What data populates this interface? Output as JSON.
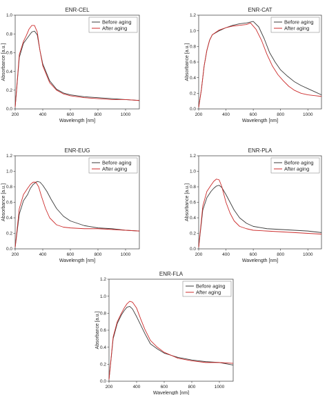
{
  "series_colors": {
    "before": "#3a3a3a",
    "after": "#cc2a2a"
  },
  "chart_data": [
    {
      "type": "line",
      "title": "ENR-CEL",
      "xlabel": "Wavelength [nm]",
      "ylabel": "Absorbance [a.u.]",
      "xlim": [
        200,
        1100
      ],
      "ylim": [
        0,
        1.0
      ],
      "xticks": [
        200,
        400,
        600,
        800,
        1000
      ],
      "yticks": [
        0,
        0.2,
        0.4,
        0.6,
        0.8,
        1.0
      ],
      "ytick_labels": [
        "0.0",
        "0.2",
        "0.4",
        "0.6",
        "0.8",
        "1.0"
      ],
      "legend": "top-right",
      "series": [
        {
          "name": "Before aging",
          "color": "#3a3a3a",
          "x": [
            200,
            230,
            260,
            280,
            300,
            320,
            340,
            360,
            380,
            400,
            450,
            500,
            550,
            600,
            700,
            800,
            900,
            1000,
            1100
          ],
          "y": [
            0.02,
            0.55,
            0.7,
            0.74,
            0.78,
            0.82,
            0.83,
            0.79,
            0.62,
            0.48,
            0.3,
            0.21,
            0.17,
            0.15,
            0.13,
            0.12,
            0.11,
            0.1,
            0.09
          ]
        },
        {
          "name": "After aging",
          "color": "#cc2a2a",
          "x": [
            200,
            230,
            260,
            280,
            300,
            320,
            340,
            360,
            380,
            400,
            450,
            500,
            550,
            600,
            700,
            800,
            900,
            1000,
            1100
          ],
          "y": [
            0.02,
            0.58,
            0.72,
            0.78,
            0.85,
            0.89,
            0.89,
            0.82,
            0.62,
            0.46,
            0.28,
            0.2,
            0.16,
            0.14,
            0.12,
            0.11,
            0.1,
            0.1,
            0.09
          ]
        }
      ]
    },
    {
      "type": "line",
      "title": "ENR-CAT",
      "xlabel": "Wavelength [nm]",
      "ylabel": "Absorbance [a.u.]",
      "xlim": [
        200,
        1100
      ],
      "ylim": [
        0,
        1.2
      ],
      "xticks": [
        200,
        400,
        600,
        800,
        1000
      ],
      "yticks": [
        0,
        0.2,
        0.4,
        0.6,
        0.8,
        1.0,
        1.2
      ],
      "ytick_labels": [
        "0.0",
        "0.2",
        "0.4",
        "0.6",
        "0.8",
        "1.0",
        "1.2"
      ],
      "legend": "top-right",
      "series": [
        {
          "name": "Before aging",
          "color": "#3a3a3a",
          "x": [
            200,
            220,
            240,
            260,
            280,
            300,
            350,
            400,
            450,
            500,
            550,
            600,
            640,
            680,
            720,
            760,
            800,
            850,
            900,
            950,
            1000,
            1050,
            1100
          ],
          "y": [
            0.02,
            0.25,
            0.55,
            0.75,
            0.88,
            0.95,
            1.0,
            1.04,
            1.07,
            1.09,
            1.1,
            1.12,
            1.05,
            0.9,
            0.72,
            0.6,
            0.5,
            0.42,
            0.35,
            0.3,
            0.26,
            0.22,
            0.18
          ]
        },
        {
          "name": "After aging",
          "color": "#cc2a2a",
          "x": [
            200,
            220,
            240,
            260,
            280,
            300,
            350,
            400,
            450,
            500,
            550,
            580,
            620,
            660,
            700,
            740,
            780,
            820,
            860,
            900,
            950,
            1000,
            1050,
            1100
          ],
          "y": [
            0.02,
            0.25,
            0.55,
            0.75,
            0.88,
            0.95,
            1.01,
            1.04,
            1.06,
            1.07,
            1.08,
            1.1,
            1.02,
            0.88,
            0.7,
            0.55,
            0.44,
            0.36,
            0.29,
            0.24,
            0.2,
            0.18,
            0.17,
            0.16
          ]
        }
      ]
    },
    {
      "type": "line",
      "title": "ENR-EUG",
      "xlabel": "Wavelength [nm]",
      "ylabel": "Absorbance [a.u.]",
      "xlim": [
        200,
        1100
      ],
      "ylim": [
        0,
        1.2
      ],
      "xticks": [
        200,
        400,
        600,
        800,
        1000
      ],
      "yticks": [
        0,
        0.2,
        0.4,
        0.6,
        0.8,
        1.0,
        1.2
      ],
      "ytick_labels": [
        "0.0",
        "0.2",
        "0.4",
        "0.6",
        "0.8",
        "1.0",
        "1.2"
      ],
      "legend": "top-right",
      "series": [
        {
          "name": "Before aging",
          "color": "#3a3a3a",
          "x": [
            200,
            230,
            260,
            290,
            310,
            330,
            360,
            380,
            400,
            430,
            460,
            500,
            550,
            600,
            700,
            800,
            900,
            1000,
            1100
          ],
          "y": [
            0.02,
            0.45,
            0.62,
            0.7,
            0.78,
            0.83,
            0.87,
            0.86,
            0.82,
            0.74,
            0.64,
            0.52,
            0.42,
            0.36,
            0.3,
            0.27,
            0.26,
            0.24,
            0.23
          ]
        },
        {
          "name": "After aging",
          "color": "#cc2a2a",
          "x": [
            200,
            230,
            260,
            290,
            310,
            330,
            350,
            370,
            390,
            420,
            450,
            500,
            550,
            600,
            700,
            800,
            900,
            1000,
            1100
          ],
          "y": [
            0.02,
            0.52,
            0.7,
            0.78,
            0.83,
            0.86,
            0.86,
            0.8,
            0.68,
            0.52,
            0.4,
            0.31,
            0.28,
            0.27,
            0.26,
            0.26,
            0.25,
            0.24,
            0.23
          ]
        }
      ]
    },
    {
      "type": "line",
      "title": "ENR-PLA",
      "xlabel": "Wavelength [nm]",
      "ylabel": "Absorbance [a.u.]",
      "xlim": [
        200,
        1100
      ],
      "ylim": [
        0,
        1.2
      ],
      "xticks": [
        200,
        400,
        600,
        800,
        1000
      ],
      "yticks": [
        0,
        0.2,
        0.4,
        0.6,
        0.8,
        1.0,
        1.2
      ],
      "ytick_labels": [
        "0.0",
        "0.2",
        "0.4",
        "0.6",
        "0.8",
        "1.0",
        "1.2"
      ],
      "legend": "top-right",
      "series": [
        {
          "name": "Before aging",
          "color": "#3a3a3a",
          "x": [
            200,
            230,
            260,
            290,
            310,
            330,
            350,
            370,
            400,
            430,
            460,
            500,
            550,
            600,
            700,
            800,
            900,
            1000,
            1100
          ],
          "y": [
            0.02,
            0.5,
            0.66,
            0.74,
            0.78,
            0.81,
            0.82,
            0.79,
            0.7,
            0.6,
            0.5,
            0.4,
            0.33,
            0.29,
            0.26,
            0.25,
            0.24,
            0.23,
            0.21
          ]
        },
        {
          "name": "After aging",
          "color": "#cc2a2a",
          "x": [
            200,
            230,
            260,
            290,
            310,
            330,
            350,
            370,
            400,
            430,
            460,
            500,
            550,
            600,
            700,
            800,
            900,
            1000,
            1100
          ],
          "y": [
            0.02,
            0.55,
            0.74,
            0.82,
            0.87,
            0.9,
            0.89,
            0.8,
            0.6,
            0.46,
            0.36,
            0.29,
            0.26,
            0.24,
            0.23,
            0.22,
            0.21,
            0.2,
            0.19
          ]
        }
      ]
    },
    {
      "type": "line",
      "title": "ENR-FLA",
      "xlabel": "Wavelength [nm]",
      "ylabel": "Absorbance [a.u.]",
      "xlim": [
        200,
        1100
      ],
      "ylim": [
        0,
        1.2
      ],
      "xticks": [
        200,
        400,
        600,
        800,
        1000
      ],
      "yticks": [
        0,
        0.2,
        0.4,
        0.6,
        0.8,
        1.0,
        1.2
      ],
      "ytick_labels": [
        "0.0",
        "0.2",
        "0.4",
        "0.6",
        "0.8",
        "1.0",
        "1.2"
      ],
      "legend": "top-right",
      "series": [
        {
          "name": "Before aging",
          "color": "#3a3a3a",
          "x": [
            200,
            230,
            260,
            290,
            310,
            330,
            350,
            370,
            400,
            430,
            460,
            500,
            550,
            600,
            700,
            800,
            900,
            1000,
            1100
          ],
          "y": [
            0.02,
            0.5,
            0.68,
            0.78,
            0.83,
            0.87,
            0.88,
            0.85,
            0.76,
            0.66,
            0.56,
            0.44,
            0.38,
            0.33,
            0.28,
            0.25,
            0.23,
            0.22,
            0.19
          ]
        },
        {
          "name": "After aging",
          "color": "#cc2a2a",
          "x": [
            200,
            230,
            260,
            290,
            310,
            330,
            350,
            370,
            400,
            430,
            460,
            500,
            550,
            600,
            700,
            800,
            900,
            1000,
            1100
          ],
          "y": [
            0.02,
            0.52,
            0.7,
            0.8,
            0.86,
            0.91,
            0.94,
            0.93,
            0.86,
            0.73,
            0.61,
            0.48,
            0.4,
            0.34,
            0.27,
            0.24,
            0.22,
            0.22,
            0.21
          ]
        }
      ]
    }
  ]
}
